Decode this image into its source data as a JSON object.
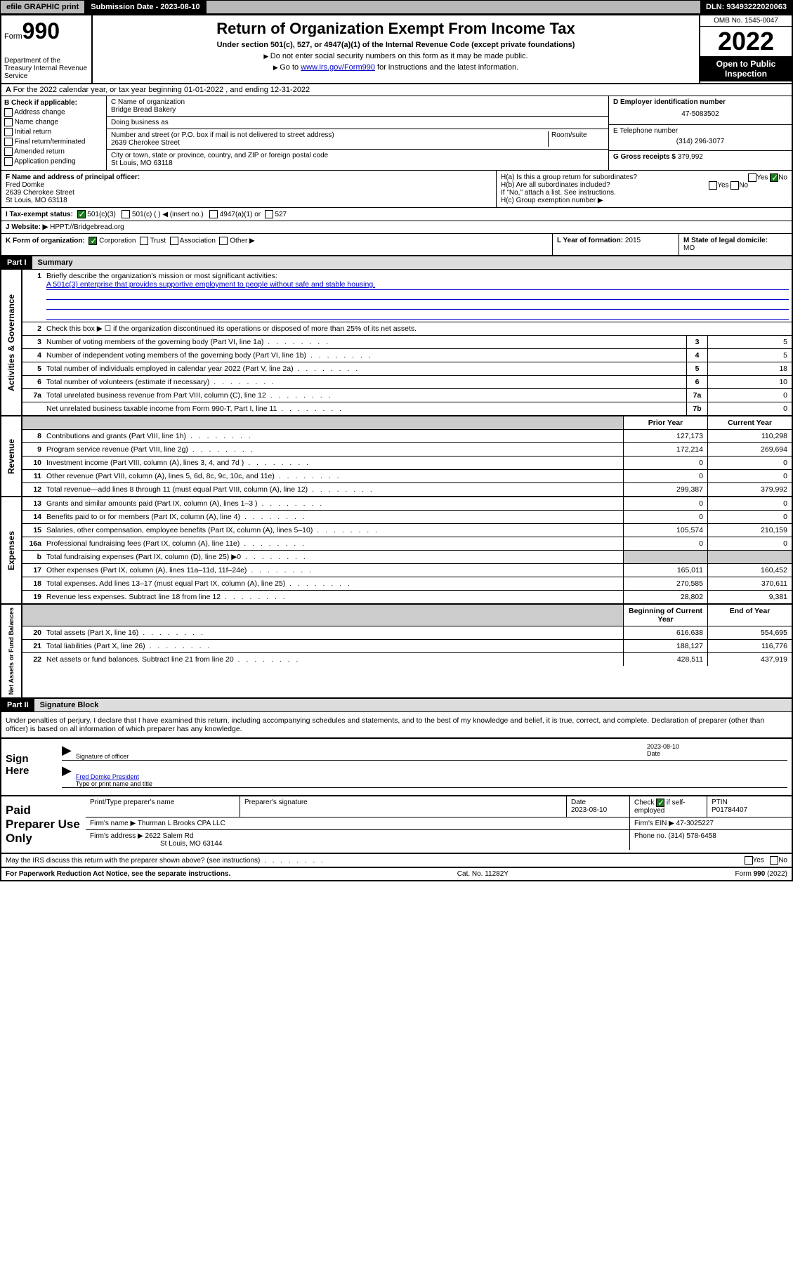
{
  "topbar": {
    "efile": "efile GRAPHIC print",
    "sub_label": "Submission Date - 2023-08-10",
    "dln": "DLN: 93493222020063"
  },
  "header": {
    "form_word": "Form",
    "form_num": "990",
    "dept": "Department of the Treasury Internal Revenue Service",
    "title": "Return of Organization Exempt From Income Tax",
    "subtitle": "Under section 501(c), 527, or 4947(a)(1) of the Internal Revenue Code (except private foundations)",
    "note1": "Do not enter social security numbers on this form as it may be made public.",
    "note2_pre": "Go to ",
    "note2_link": "www.irs.gov/Form990",
    "note2_post": " for instructions and the latest information.",
    "omb": "OMB No. 1545-0047",
    "year": "2022",
    "open": "Open to Public Inspection"
  },
  "rowA": "For the 2022 calendar year, or tax year beginning 01-01-2022   , and ending 12-31-2022",
  "colB": {
    "title": "B Check if applicable:",
    "opts": [
      "Address change",
      "Name change",
      "Initial return",
      "Final return/terminated",
      "Amended return",
      "Application pending"
    ]
  },
  "colC": {
    "name_label": "C Name of organization",
    "name": "Bridge Bread Bakery",
    "dba": "Doing business as",
    "addr_label": "Number and street (or P.O. box if mail is not delivered to street address)",
    "room": "Room/suite",
    "addr": "2639 Cherokee Street",
    "city_label": "City or town, state or province, country, and ZIP or foreign postal code",
    "city": "St Louis, MO  63118"
  },
  "colDE": {
    "d_label": "D Employer identification number",
    "d_val": "47-5083502",
    "e_label": "E Telephone number",
    "e_val": "(314) 296-3077",
    "g_label": "G Gross receipts $ ",
    "g_val": "379,992"
  },
  "rowF": {
    "label": "F Name and address of principal officer:",
    "name": "Fred Domke",
    "addr1": "2639 Cherokee Street",
    "addr2": "St Louis, MO  63118"
  },
  "rowH": {
    "ha": "H(a)  Is this a group return for subordinates?",
    "hb": "H(b)  Are all subordinates included?",
    "hb_note": "If \"No,\" attach a list. See instructions.",
    "hc": "H(c)  Group exemption number ▶"
  },
  "rowI": {
    "label": "I   Tax-exempt status:",
    "c3": "501(c)(3)",
    "c": "501(c) (   ) ◀ (insert no.)",
    "a4947": "4947(a)(1) or",
    "s527": "527"
  },
  "rowJ": {
    "label": "J   Website: ▶ ",
    "val": "HPPT://Bridgebread.org"
  },
  "rowK": {
    "label": "K Form of organization:",
    "corp": "Corporation",
    "trust": "Trust",
    "assoc": "Association",
    "other": "Other ▶"
  },
  "rowL": {
    "label": "L Year of formation: ",
    "val": "2015"
  },
  "rowM": {
    "label": "M State of legal domicile: ",
    "val": "MO"
  },
  "part1": {
    "num": "Part I",
    "title": "Summary"
  },
  "summary": {
    "l1": "Briefly describe the organization's mission or most significant activities:",
    "mission": "A 501c(3) enterprise that provides supportive employment to people without safe and stable housing.",
    "l2": "Check this box ▶ ☐ if the organization discontinued its operations or disposed of more than 25% of its net assets.",
    "lines_gov": [
      {
        "n": "3",
        "d": "Number of voting members of the governing body (Part VI, line 1a)",
        "b": "3",
        "v": "5"
      },
      {
        "n": "4",
        "d": "Number of independent voting members of the governing body (Part VI, line 1b)",
        "b": "4",
        "v": "5"
      },
      {
        "n": "5",
        "d": "Total number of individuals employed in calendar year 2022 (Part V, line 2a)",
        "b": "5",
        "v": "18"
      },
      {
        "n": "6",
        "d": "Total number of volunteers (estimate if necessary)",
        "b": "6",
        "v": "10"
      },
      {
        "n": "7a",
        "d": "Total unrelated business revenue from Part VIII, column (C), line 12",
        "b": "7a",
        "v": "0"
      },
      {
        "n": "",
        "d": "Net unrelated business taxable income from Form 990-T, Part I, line 11",
        "b": "7b",
        "v": "0"
      }
    ],
    "prior": "Prior Year",
    "current": "Current Year",
    "rev": [
      {
        "n": "8",
        "d": "Contributions and grants (Part VIII, line 1h)",
        "p": "127,173",
        "c": "110,298"
      },
      {
        "n": "9",
        "d": "Program service revenue (Part VIII, line 2g)",
        "p": "172,214",
        "c": "269,694"
      },
      {
        "n": "10",
        "d": "Investment income (Part VIII, column (A), lines 3, 4, and 7d )",
        "p": "0",
        "c": "0"
      },
      {
        "n": "11",
        "d": "Other revenue (Part VIII, column (A), lines 5, 6d, 8c, 9c, 10c, and 11e)",
        "p": "0",
        "c": "0"
      },
      {
        "n": "12",
        "d": "Total revenue—add lines 8 through 11 (must equal Part VIII, column (A), line 12)",
        "p": "299,387",
        "c": "379,992"
      }
    ],
    "exp": [
      {
        "n": "13",
        "d": "Grants and similar amounts paid (Part IX, column (A), lines 1–3 )",
        "p": "0",
        "c": "0"
      },
      {
        "n": "14",
        "d": "Benefits paid to or for members (Part IX, column (A), line 4)",
        "p": "0",
        "c": "0"
      },
      {
        "n": "15",
        "d": "Salaries, other compensation, employee benefits (Part IX, column (A), lines 5–10)",
        "p": "105,574",
        "c": "210,159"
      },
      {
        "n": "16a",
        "d": "Professional fundraising fees (Part IX, column (A), line 11e)",
        "p": "0",
        "c": "0"
      },
      {
        "n": "b",
        "d": "Total fundraising expenses (Part IX, column (D), line 25) ▶0",
        "p": "",
        "c": "",
        "gray": true
      },
      {
        "n": "17",
        "d": "Other expenses (Part IX, column (A), lines 11a–11d, 11f–24e)",
        "p": "165,011",
        "c": "160,452"
      },
      {
        "n": "18",
        "d": "Total expenses. Add lines 13–17 (must equal Part IX, column (A), line 25)",
        "p": "270,585",
        "c": "370,611"
      },
      {
        "n": "19",
        "d": "Revenue less expenses. Subtract line 18 from line 12",
        "p": "28,802",
        "c": "9,381"
      }
    ],
    "begin": "Beginning of Current Year",
    "end": "End of Year",
    "net": [
      {
        "n": "20",
        "d": "Total assets (Part X, line 16)",
        "p": "616,638",
        "c": "554,695"
      },
      {
        "n": "21",
        "d": "Total liabilities (Part X, line 26)",
        "p": "188,127",
        "c": "116,776"
      },
      {
        "n": "22",
        "d": "Net assets or fund balances. Subtract line 21 from line 20",
        "p": "428,511",
        "c": "437,919"
      }
    ]
  },
  "sidelabels": {
    "gov": "Activities & Governance",
    "rev": "Revenue",
    "exp": "Expenses",
    "net": "Net Assets or Fund Balances"
  },
  "part2": {
    "num": "Part II",
    "title": "Signature Block"
  },
  "sigtext": "Under penalties of perjury, I declare that I have examined this return, including accompanying schedules and statements, and to the best of my knowledge and belief, it is true, correct, and complete. Declaration of preparer (other than officer) is based on all information of which preparer has any knowledge.",
  "sign": {
    "here": "Sign Here",
    "sig_officer": "Signature of officer",
    "date_label": "Date",
    "date": "2023-08-10",
    "name": "Fred Domke  President",
    "name_label": "Type or print name and title"
  },
  "paid": {
    "title": "Paid Preparer Use Only",
    "h1": "Print/Type preparer's name",
    "h2": "Preparer's signature",
    "h3": "Date",
    "h3v": "2023-08-10",
    "h4": "Check ☑ if self-employed",
    "h5": "PTIN",
    "h5v": "P01784407",
    "firm_label": "Firm's name     ▶",
    "firm": "Thurman L Brooks CPA LLC",
    "ein_label": "Firm's EIN ▶",
    "ein": "47-3025227",
    "addr_label": "Firm's address ▶",
    "addr1": "2622 Salem Rd",
    "addr2": "St Louis, MO  63144",
    "phone_label": "Phone no. ",
    "phone": "(314) 578-6458"
  },
  "footer": {
    "discuss": "May the IRS discuss this return with the preparer shown above? (see instructions)",
    "paperwork": "For Paperwork Reduction Act Notice, see the separate instructions.",
    "cat": "Cat. No. 11282Y",
    "form": "Form 990 (2022)"
  }
}
